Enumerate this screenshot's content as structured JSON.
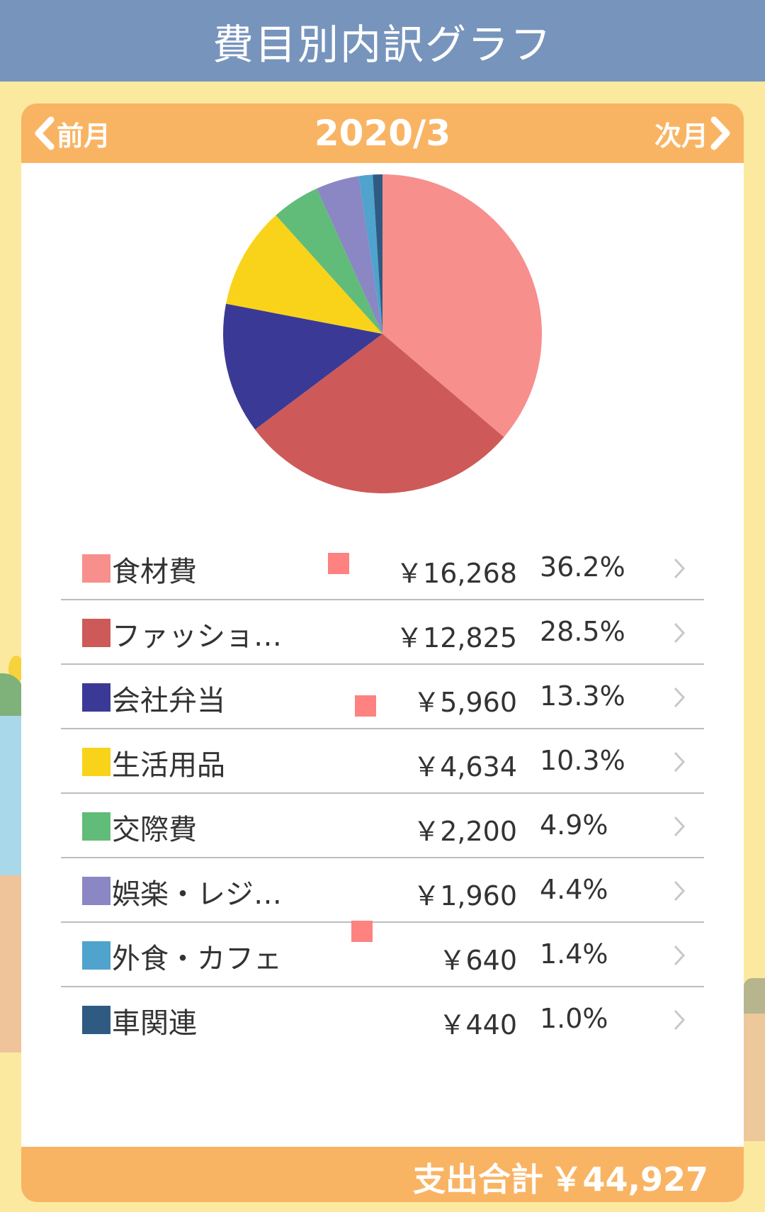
{
  "header": {
    "title": "費目別内訳グラフ"
  },
  "month_nav": {
    "prev_label": "前月",
    "current": "2020/3",
    "next_label": "次月"
  },
  "chart_data": {
    "type": "pie",
    "categories": [
      "食材費",
      "ファッショ…",
      "会社弁当",
      "生活用品",
      "交際費",
      "娯楽・レジ…",
      "外食・カフェ",
      "車関連"
    ],
    "values": [
      16268,
      12825,
      5960,
      4634,
      2200,
      1960,
      640,
      440
    ],
    "colors": [
      "#f78f8d",
      "#cd5a58",
      "#3a3a96",
      "#f8d31a",
      "#61bc79",
      "#8b86c4",
      "#4fa3cd",
      "#2f5b82"
    ]
  },
  "breakdown": [
    {
      "name": "食材費",
      "amount": "￥16,268",
      "percent": "36.2%",
      "color": "#f78f8d"
    },
    {
      "name": "ファッショ…",
      "amount": "￥12,825",
      "percent": "28.5%",
      "color": "#cd5a58"
    },
    {
      "name": "会社弁当",
      "amount": "￥5,960",
      "percent": "13.3%",
      "color": "#3a3a96"
    },
    {
      "name": "生活用品",
      "amount": "￥4,634",
      "percent": "10.3%",
      "color": "#f8d31a"
    },
    {
      "name": "交際費",
      "amount": "￥2,200",
      "percent": "4.9%",
      "color": "#61bc79"
    },
    {
      "name": "娯楽・レジ…",
      "amount": "￥1,960",
      "percent": "4.4%",
      "color": "#8b86c4"
    },
    {
      "name": "外食・カフェ",
      "amount": "￥640",
      "percent": "1.4%",
      "color": "#4fa3cd"
    },
    {
      "name": "車関連",
      "amount": "￥440",
      "percent": "1.0%",
      "color": "#2f5b82"
    }
  ],
  "total": {
    "label": "支出合計",
    "value": "￥44,927"
  },
  "icons": {
    "prev": "chevron-left-icon",
    "next": "chevron-right-icon",
    "row": "chevron-right-icon"
  }
}
